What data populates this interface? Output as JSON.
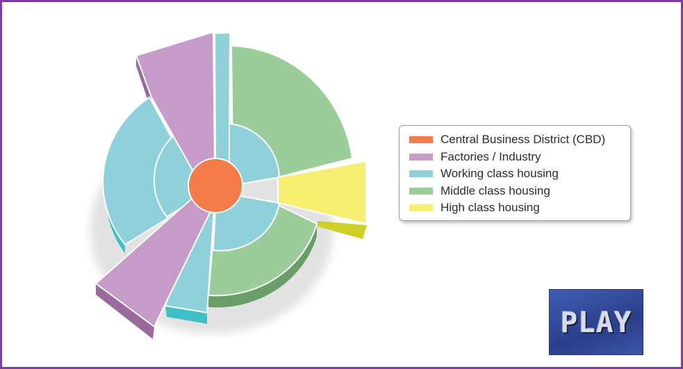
{
  "legend": {
    "items": [
      {
        "label": "Central Business District (CBD)",
        "color": "#f47c48"
      },
      {
        "label": "Factories / Industry",
        "color": "#c79bc8"
      },
      {
        "label": "Working class housing",
        "color": "#8fd1da"
      },
      {
        "label": "Middle class housing",
        "color": "#9bcd9a"
      },
      {
        "label": "High class housing",
        "color": "#f6ef6f"
      }
    ]
  },
  "play_button": {
    "label": "PLAY"
  },
  "colors": {
    "frame": "#7b3fa0",
    "cbd": "#f47c48",
    "factories": "#c79bc8",
    "working": "#8fd1da",
    "middle": "#9bcd9a",
    "high": "#f6ef6f",
    "factories_side": "#9a6a9c",
    "working_side": "#3fbfc8",
    "middle_side": "#6a9e68",
    "high_side": "#cfcf2a"
  }
}
